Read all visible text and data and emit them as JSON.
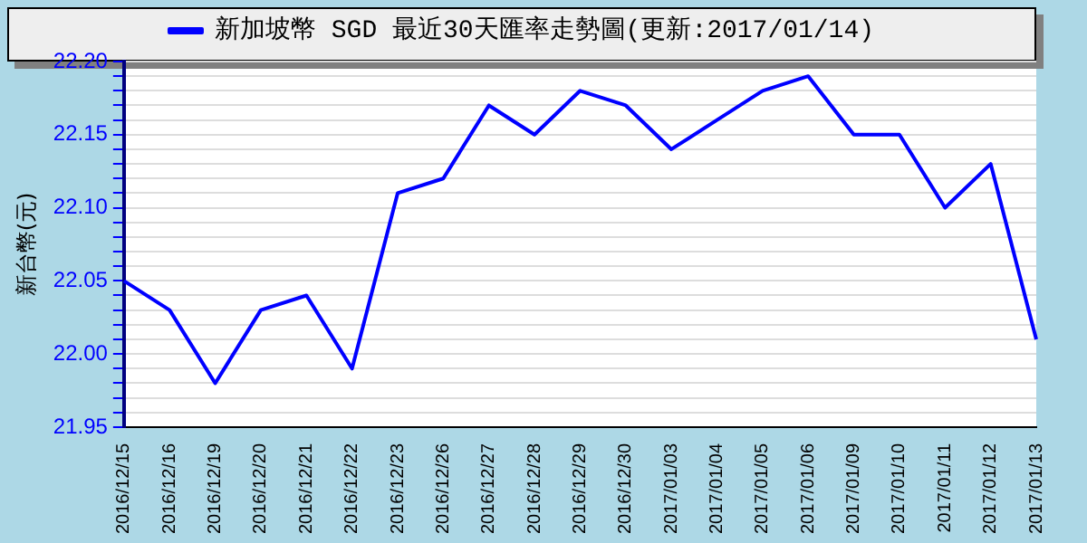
{
  "chart_data": {
    "type": "line",
    "ylabel": "新台幣(元)",
    "categories": [
      "2016/12/15",
      "2016/12/16",
      "2016/12/19",
      "2016/12/20",
      "2016/12/21",
      "2016/12/22",
      "2016/12/23",
      "2016/12/26",
      "2016/12/27",
      "2016/12/28",
      "2016/12/29",
      "2016/12/30",
      "2017/01/03",
      "2017/01/04",
      "2017/01/05",
      "2017/01/06",
      "2017/01/09",
      "2017/01/10",
      "2017/01/11",
      "2017/01/12",
      "2017/01/13"
    ],
    "series": [
      {
        "name": "新加坡幣 SGD 最近30天匯率走勢圖(更新:2017/01/14)",
        "color": "#0000ff",
        "values": [
          22.05,
          22.03,
          21.98,
          22.03,
          22.04,
          21.99,
          22.11,
          22.12,
          22.17,
          22.15,
          22.18,
          22.17,
          22.14,
          22.16,
          22.18,
          22.19,
          22.15,
          22.15,
          22.1,
          22.13,
          22.01
        ]
      }
    ],
    "ylim": [
      21.95,
      22.2
    ],
    "yticks": [
      {
        "value": 21.95,
        "label": "21.95"
      },
      {
        "value": 21.96,
        "label": null
      },
      {
        "value": 21.97,
        "label": null
      },
      {
        "value": 21.98,
        "label": null
      },
      {
        "value": 21.99,
        "label": null
      },
      {
        "value": 22,
        "label": "22.00"
      },
      {
        "value": 22.01,
        "label": null
      },
      {
        "value": 22.02,
        "label": null
      },
      {
        "value": 22.03,
        "label": null
      },
      {
        "value": 22.04,
        "label": null
      },
      {
        "value": 22.05,
        "label": "22.05"
      },
      {
        "value": 22.06,
        "label": null
      },
      {
        "value": 22.07,
        "label": null
      },
      {
        "value": 22.08,
        "label": null
      },
      {
        "value": 22.09,
        "label": null
      },
      {
        "value": 22.1,
        "label": "22.10"
      },
      {
        "value": 22.11,
        "label": null
      },
      {
        "value": 22.12,
        "label": null
      },
      {
        "value": 22.13,
        "label": null
      },
      {
        "value": 22.14,
        "label": null
      },
      {
        "value": 22.15,
        "label": "22.15"
      },
      {
        "value": 22.16,
        "label": null
      },
      {
        "value": 22.17,
        "label": null
      },
      {
        "value": 22.18,
        "label": null
      },
      {
        "value": 22.19,
        "label": null
      },
      {
        "value": 22.2,
        "label": "22.20"
      }
    ],
    "grid": "y",
    "legend": "top",
    "marker": "none",
    "line_style": "solid"
  }
}
